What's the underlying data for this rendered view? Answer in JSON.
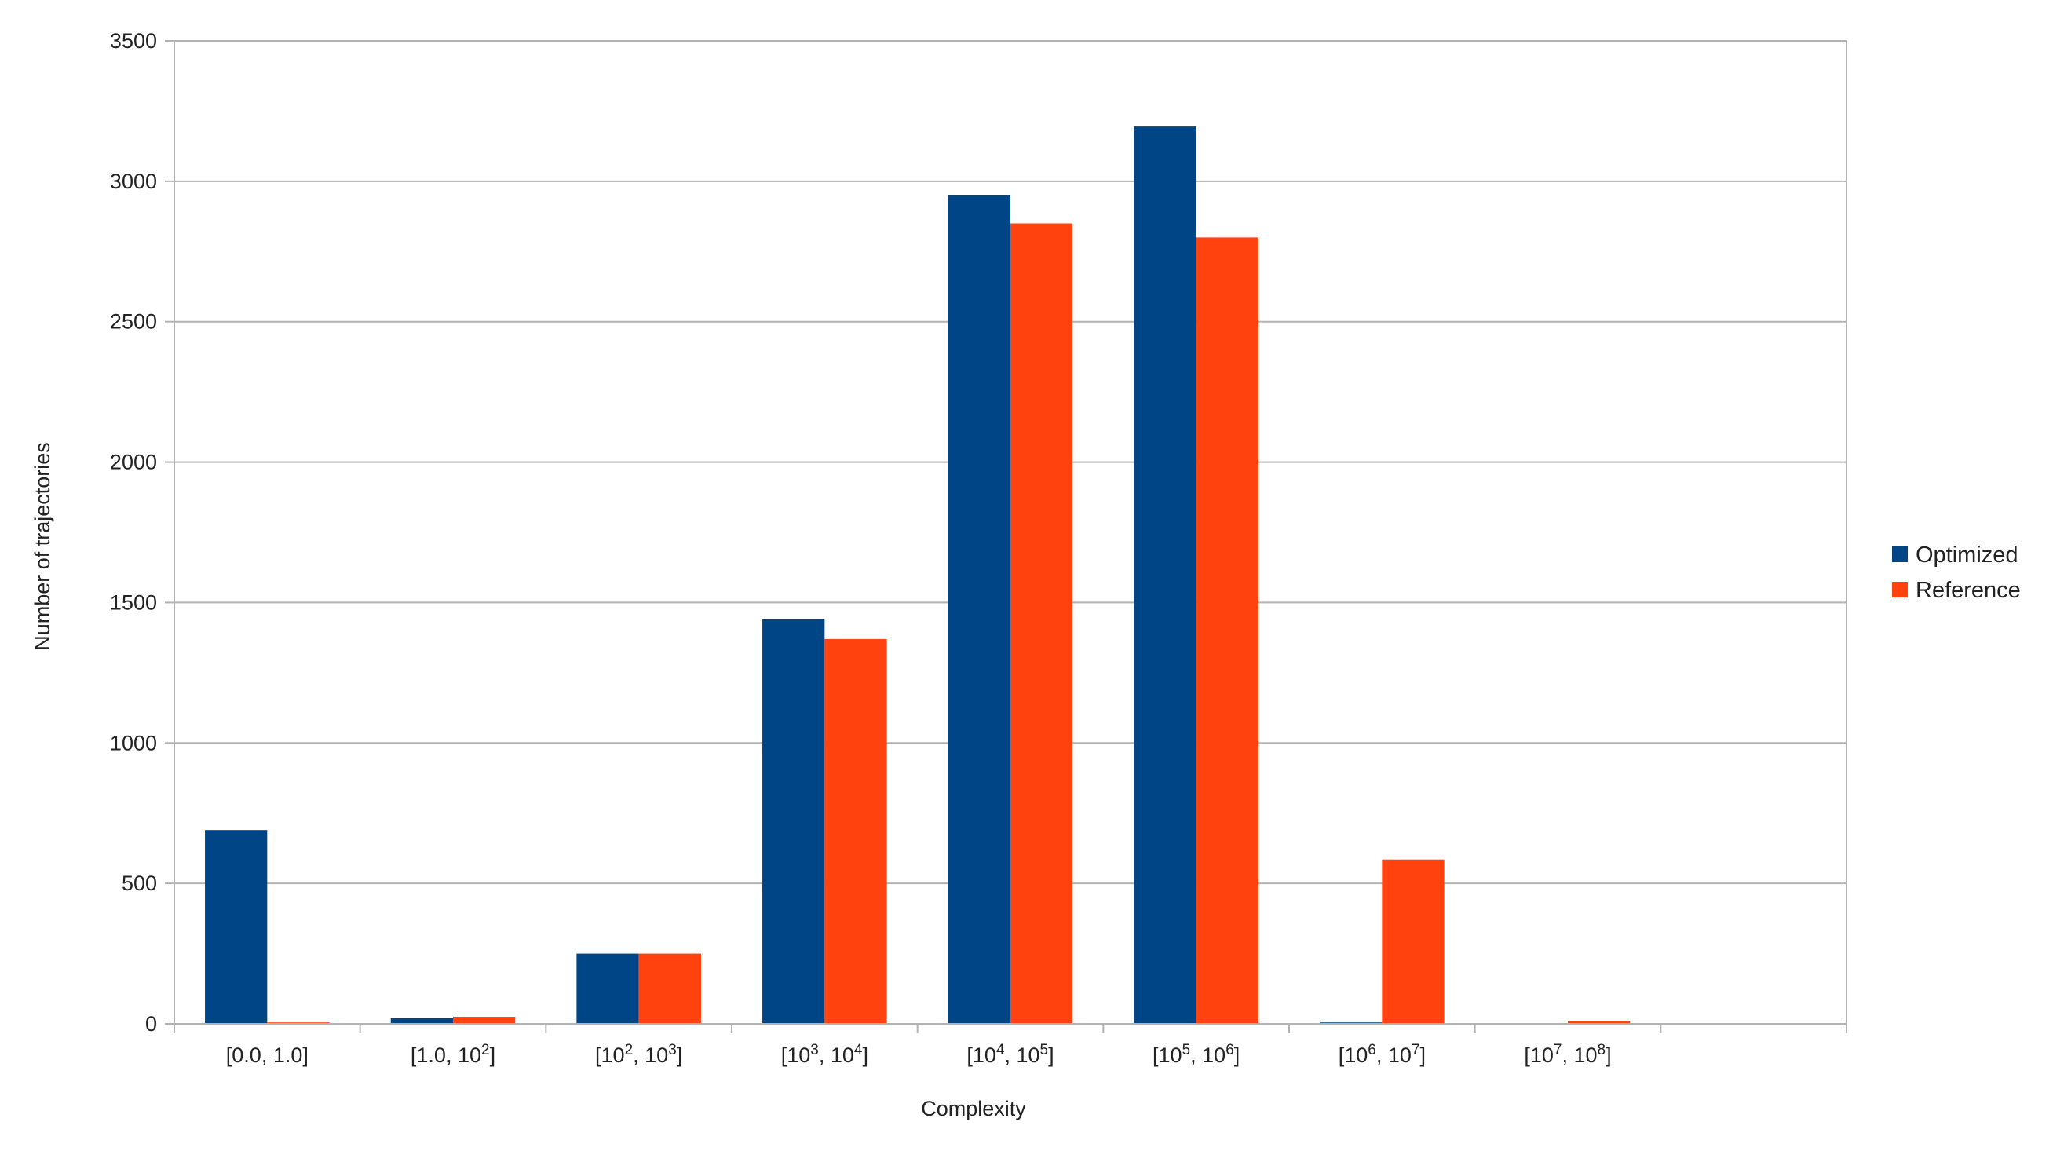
{
  "chart_data": {
    "type": "bar",
    "title": "",
    "xlabel": "Complexity",
    "ylabel": "Number of trajectories",
    "categories": [
      {
        "base": "[0.0,  1.0]"
      },
      {
        "base": "[1.0,  10",
        "sup": "2",
        "tail": "]"
      },
      {
        "base": "[10",
        "sup": "2",
        "mid": ", 10",
        "sup2": "3",
        "tail": "]"
      },
      {
        "base": "[10",
        "sup": "3",
        "mid": ", 10",
        "sup2": "4",
        "tail": "]"
      },
      {
        "base": "[10",
        "sup": "4",
        "mid": ", 10",
        "sup2": "5",
        "tail": "]"
      },
      {
        "base": "[10",
        "sup": "5",
        "mid": ", 10",
        "sup2": "6",
        "tail": "]"
      },
      {
        "base": "[10",
        "sup": "6",
        "mid": ", 10",
        "sup2": "7",
        "tail": "]"
      },
      {
        "base": "[10",
        "sup": "7",
        "mid": ", 10",
        "sup2": "8",
        "tail": "]"
      },
      {
        "base": ""
      }
    ],
    "series": [
      {
        "name": "Optimized",
        "color": "#004586",
        "values": [
          690,
          20,
          250,
          1440,
          2950,
          3195,
          5,
          0,
          0
        ]
      },
      {
        "name": "Reference",
        "color": "#ff420e",
        "values": [
          5,
          25,
          250,
          1370,
          2850,
          2800,
          585,
          10,
          0
        ]
      }
    ],
    "ylim": [
      0,
      3500
    ],
    "yticks": [
      0,
      500,
      1000,
      1500,
      2000,
      2500,
      3000,
      3500
    ],
    "grid": true,
    "legend_position": "right",
    "colors": {
      "grid": "#b3b3b3",
      "axis": "#b3b3b3"
    }
  }
}
